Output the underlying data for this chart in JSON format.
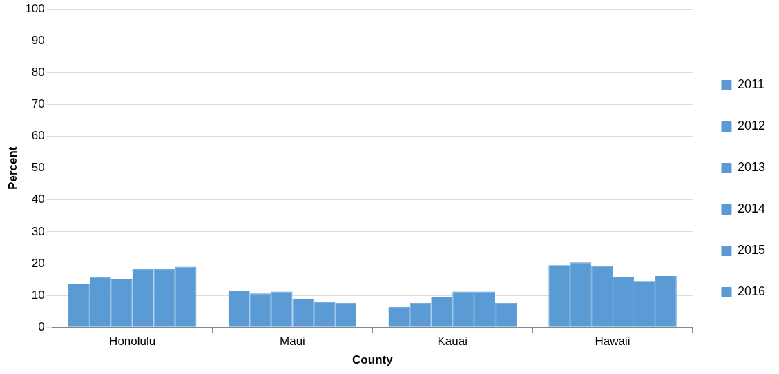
{
  "chart_data": {
    "type": "bar",
    "xlabel": "County",
    "ylabel": "Percent",
    "categories": [
      "Honolulu",
      "Maui",
      "Kauai",
      "Hawaii"
    ],
    "series": [
      {
        "name": "2011",
        "color": "#5b9bd5",
        "values": [
          13.5,
          11.3,
          6.4,
          19.5
        ]
      },
      {
        "name": "2012",
        "color": "#5b9bd5",
        "values": [
          15.8,
          10.6,
          7.7,
          20.4
        ]
      },
      {
        "name": "2013",
        "color": "#5b9bd5",
        "values": [
          15.0,
          11.2,
          9.6,
          19.3
        ]
      },
      {
        "name": "2014",
        "color": "#5b9bd5",
        "values": [
          18.3,
          9.0,
          11.2,
          15.9
        ]
      },
      {
        "name": "2015",
        "color": "#5b9bd5",
        "values": [
          18.3,
          7.9,
          11.2,
          14.5
        ]
      },
      {
        "name": "2016",
        "color": "#5b9bd5",
        "values": [
          19.0,
          7.7,
          7.7,
          16.1
        ]
      }
    ],
    "ylim": [
      0,
      100
    ],
    "yticks": [
      0,
      10,
      20,
      30,
      40,
      50,
      60,
      70,
      80,
      90,
      100
    ],
    "grid": "y",
    "legend": "right"
  }
}
